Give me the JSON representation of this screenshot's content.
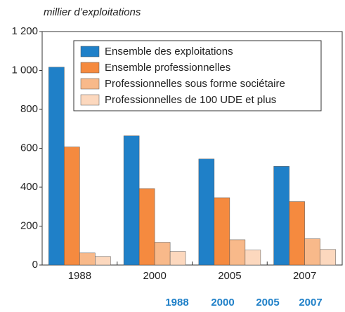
{
  "chart_data": {
    "type": "bar",
    "y_label": "millier d’exploitations",
    "categories": [
      "1988",
      "2000",
      "2005",
      "2007"
    ],
    "series": [
      {
        "name": "Ensemble des exploitations",
        "color": "#1f80c8",
        "values": [
          1017,
          664,
          545,
          507
        ]
      },
      {
        "name": "Ensemble professionnelles",
        "color": "#f58a3f",
        "values": [
          607,
          393,
          346,
          326
        ]
      },
      {
        "name": "Professionnelles sous forme sociétaire",
        "color": "#f8b98a",
        "values": [
          62,
          117,
          130,
          135
        ]
      },
      {
        "name": "Professionnelles de 100 UDE et plus",
        "color": "#fcd8be",
        "values": [
          44,
          70,
          77,
          80
        ]
      }
    ],
    "ylim": [
      0,
      1200
    ],
    "yticks": [
      0,
      200,
      400,
      600,
      800,
      {
        "value": 1000,
        "label": "1 000"
      },
      {
        "value": 1200,
        "label": "1 200"
      }
    ],
    "legend": "top",
    "footer_years": [
      "1988",
      "2000",
      "2005",
      "2007"
    ]
  }
}
